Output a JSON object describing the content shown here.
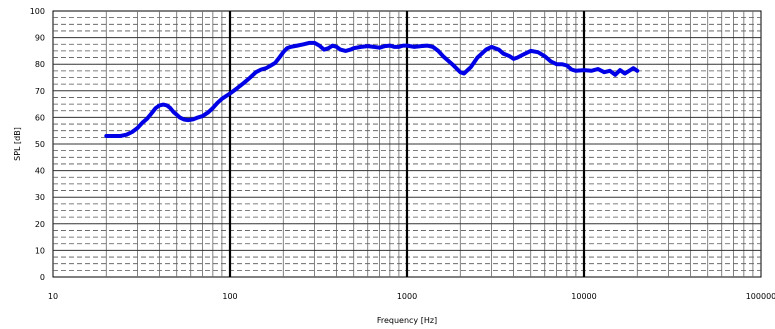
{
  "chart_data": {
    "type": "line",
    "title": "",
    "xlabel": "Frequency [Hz]",
    "ylabel": "SPL [dB]",
    "x_scale": "log",
    "xlim": [
      10,
      100000
    ],
    "ylim": [
      0,
      100
    ],
    "grid": true,
    "y_ticks": [
      "0",
      "10",
      "20",
      "30",
      "40",
      "50",
      "60",
      "70",
      "80",
      "90",
      "100"
    ],
    "x_ticks": [
      "10",
      "100",
      "1000",
      "10000",
      "100000"
    ],
    "line_color": "#0000e6",
    "series": [
      {
        "x": [
          20,
          22,
          24,
          26,
          28,
          30,
          32,
          34,
          36,
          38,
          40,
          42,
          44,
          46,
          48,
          50,
          52,
          55,
          58,
          62,
          66,
          70,
          75,
          80,
          85,
          90,
          95,
          100,
          110,
          120,
          130,
          140,
          150,
          160,
          170,
          180,
          190,
          200,
          210,
          220,
          240,
          260,
          280,
          300,
          320,
          340,
          360,
          380,
          400,
          420,
          450,
          480,
          500,
          550,
          600,
          650,
          700,
          750,
          800,
          850,
          900,
          950,
          1000,
          1100,
          1200,
          1300,
          1400,
          1500,
          1600,
          1800,
          2000,
          2100,
          2300,
          2500,
          2800,
          3000,
          3300,
          3500,
          3800,
          4000,
          4200,
          4500,
          5000,
          5500,
          6000,
          6500,
          7000,
          7500,
          8000,
          8500,
          9000,
          10000,
          11000,
          12000,
          13000,
          14000,
          15000,
          16000,
          17000,
          18000,
          19000,
          20000
        ],
        "y": [
          53,
          53,
          53,
          53.5,
          54.5,
          56,
          58,
          59.5,
          61.5,
          63.5,
          64.5,
          64.8,
          64.5,
          63.5,
          62,
          61,
          60,
          59.2,
          59,
          59.3,
          60,
          60.5,
          61.8,
          63.5,
          65.5,
          67,
          68,
          69,
          71,
          73,
          75,
          77,
          78,
          78.5,
          79.5,
          80.5,
          82.5,
          84.5,
          86,
          86.5,
          87,
          87.5,
          88,
          88,
          87,
          85.5,
          86,
          87,
          86.5,
          85.5,
          85,
          85.5,
          86,
          86.5,
          86.8,
          86.5,
          86.2,
          86.8,
          87,
          86.5,
          86.5,
          87,
          87,
          86.5,
          86.8,
          87,
          86.5,
          85,
          83,
          80,
          77,
          76.5,
          79,
          82.5,
          85.5,
          86.5,
          85.5,
          84,
          83,
          82,
          82.5,
          83.5,
          85,
          84.5,
          83,
          81,
          80,
          80,
          79.5,
          78,
          77.5,
          77.8,
          77.5,
          78.2,
          77,
          77.5,
          76,
          77.8,
          76.5,
          77.5,
          78.5,
          77.5
        ]
      }
    ]
  }
}
